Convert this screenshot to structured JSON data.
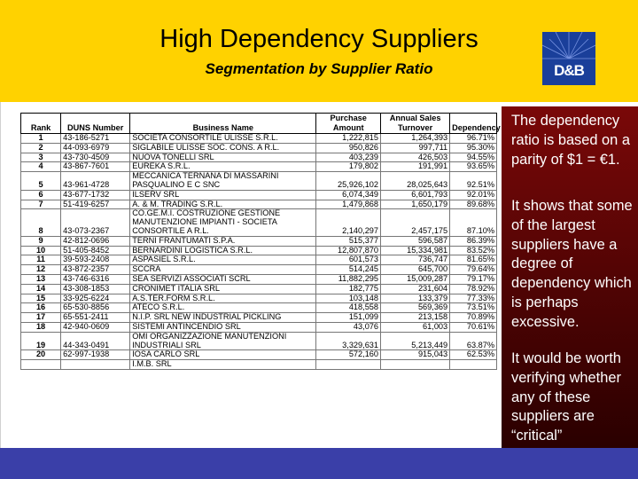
{
  "header": {
    "title": "High Dependency Suppliers",
    "subtitle": "Segmentation by Supplier Ratio",
    "logo_text": "D&B"
  },
  "table": {
    "headers": [
      "Rank",
      "DUNS Number",
      "Business Name",
      "Purchase Amount",
      "Annual Sales Turnover",
      "Dependency"
    ],
    "rows": [
      {
        "rank": "1",
        "duns": "43-186-5271",
        "name": "SOCIETA CONSORTILE ULISSE S.R.L.",
        "purchase": "1,222,815",
        "turnover": "1,264,393",
        "dep": "96.71%"
      },
      {
        "rank": "2",
        "duns": "44-093-6979",
        "name": "SIGLABILE ULISSE SOC. CONS. A R.L.",
        "purchase": "950,826",
        "turnover": "997,711",
        "dep": "95.30%"
      },
      {
        "rank": "3",
        "duns": "43-730-4509",
        "name": "NUOVA TONELLI SRL",
        "purchase": "403,239",
        "turnover": "426,503",
        "dep": "94.55%"
      },
      {
        "rank": "4",
        "duns": "43-867-7601",
        "name": "EUREKA S.R.L.",
        "purchase": "179,802",
        "turnover": "191,991",
        "dep": "93.65%"
      },
      {
        "rank": "5",
        "duns": "43-961-4728",
        "name": "MECCANICA TERNANA DI MASSARINI PASQUALINO E C SNC",
        "purchase": "25,926,102",
        "turnover": "28,025,643",
        "dep": "92.51%"
      },
      {
        "rank": "6",
        "duns": "43-677-1732",
        "name": "ILSERV SRL",
        "purchase": "6,074,349",
        "turnover": "6,601,793",
        "dep": "92.01%"
      },
      {
        "rank": "7",
        "duns": "51-419-6257",
        "name": "A. & M. TRADING S.R.L.",
        "purchase": "1,479,868",
        "turnover": "1,650,179",
        "dep": "89.68%"
      },
      {
        "rank": "8",
        "duns": "43-073-2367",
        "name": "CO.GE.M.I. COSTRUZIONE GESTIONE MANUTENZIONE IMPIANTI - SOCIETA CONSORTILE A R.L.",
        "purchase": "2,140,297",
        "turnover": "2,457,175",
        "dep": "87.10%"
      },
      {
        "rank": "9",
        "duns": "42-812-0696",
        "name": "TERNI FRANTUMATI S.P.A.",
        "purchase": "515,377",
        "turnover": "596,587",
        "dep": "86.39%"
      },
      {
        "rank": "10",
        "duns": "51-405-8452",
        "name": "BERNARDINI LOGISTICA S.R.L.",
        "purchase": "12,807,870",
        "turnover": "15,334,981",
        "dep": "83.52%"
      },
      {
        "rank": "11",
        "duns": "39-593-2408",
        "name": "ASPASIEL S.R.L.",
        "purchase": "601,573",
        "turnover": "736,747",
        "dep": "81.65%"
      },
      {
        "rank": "12",
        "duns": "43-872-2357",
        "name": "SCCRA",
        "purchase": "514,245",
        "turnover": "645,700",
        "dep": "79.64%"
      },
      {
        "rank": "13",
        "duns": "43-746-6316",
        "name": "SEA SERVIZI ASSOCIATI SCRL",
        "purchase": "11,882,295",
        "turnover": "15,009,287",
        "dep": "79.17%"
      },
      {
        "rank": "14",
        "duns": "43-308-1853",
        "name": "CRONIMET ITALIA SRL",
        "purchase": "182,775",
        "turnover": "231,604",
        "dep": "78.92%"
      },
      {
        "rank": "15",
        "duns": "33-925-6224",
        "name": "A.S.TER.FORM S.R.L.",
        "purchase": "103,148",
        "turnover": "133,379",
        "dep": "77.33%"
      },
      {
        "rank": "16",
        "duns": "65-530-8856",
        "name": "ATECO S.R.L.",
        "purchase": "418,558",
        "turnover": "569,369",
        "dep": "73.51%"
      },
      {
        "rank": "17",
        "duns": "65-551-2411",
        "name": "N.I.P. SRL NEW INDUSTRIAL PICKLING",
        "purchase": "151,099",
        "turnover": "213,158",
        "dep": "70.89%"
      },
      {
        "rank": "18",
        "duns": "42-940-0609",
        "name": "SISTEMI ANTINCENDIO SRL",
        "purchase": "43,076",
        "turnover": "61,003",
        "dep": "70.61%"
      },
      {
        "rank": "19",
        "duns": "44-343-0491",
        "name": "OMI ORGANIZZAZIONE MANUTENZIONI INDUSTRIALI SRL",
        "purchase": "3,329,631",
        "turnover": "5,213,449",
        "dep": "63.87%"
      },
      {
        "rank": "20",
        "duns": "62-997-1938",
        "name": "IOSA CARLO SRL",
        "purchase": "572,160",
        "turnover": "915,043",
        "dep": "62.53%"
      }
    ],
    "extra_row_name": "I.M.B. SRL"
  },
  "panel": {
    "para1": "The dependency ratio is based on a parity of $1 = €1.",
    "para2": "It shows that some of the largest suppliers have a degree of dependency which is perhaps excessive.",
    "para3": "It would be worth verifying whether any of these suppliers are “critical”"
  },
  "colors": {
    "header_bg": "#ffd200",
    "footer_bg": "#3a3fa8",
    "panel_bg": "#7a0808",
    "logo_bg": "#1a3f9a"
  }
}
